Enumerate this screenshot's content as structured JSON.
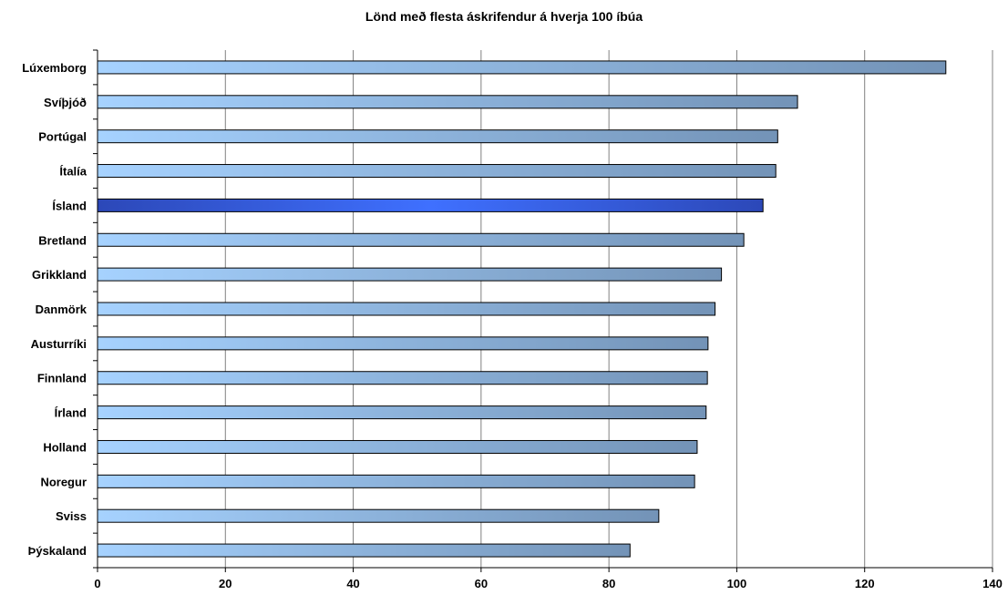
{
  "chart_data": {
    "type": "bar",
    "orientation": "horizontal",
    "title": "Lönd með flesta áskrifendur á hverja 100 íbúa",
    "xlabel": "",
    "ylabel": "",
    "xlim": [
      0,
      140
    ],
    "x_ticks": [
      0,
      20,
      40,
      60,
      80,
      100,
      120,
      140
    ],
    "grid": "vertical",
    "categories": [
      "Lúxemborg",
      "Svíþjóð",
      "Portúgal",
      "Ítalía",
      "Ísland",
      "Bretland",
      "Grikkland",
      "Danmörk",
      "Austurríki",
      "Finnland",
      "Írland",
      "Holland",
      "Noregur",
      "Sviss",
      "Þýskaland"
    ],
    "values": [
      132.7,
      109.5,
      106.4,
      106.1,
      104.1,
      101.1,
      97.6,
      96.6,
      95.5,
      95.4,
      95.2,
      93.8,
      93.4,
      87.8,
      83.3
    ],
    "highlight": "Ísland",
    "colors": {
      "bar_start": "#a6d2ff",
      "bar_end": "#7393b7",
      "highlight_start": "#2c48b8",
      "highlight_mid": "#3f70ff",
      "bar_border": "#000000",
      "grid": "#808080"
    }
  }
}
